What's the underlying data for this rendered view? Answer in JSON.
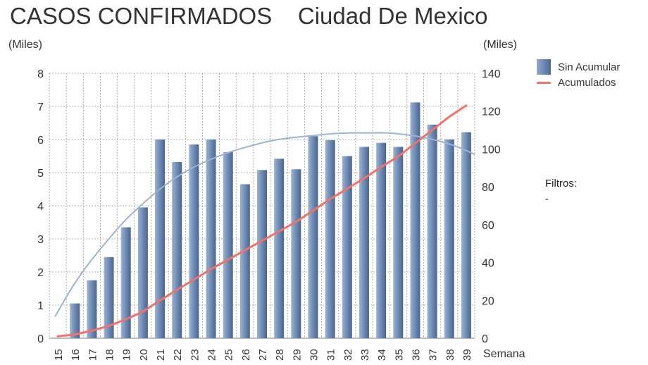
{
  "title": "CASOS CONFIRMADOS    Ciudad De Mexico",
  "filters": {
    "label": "Filtros:",
    "value": "-"
  },
  "chart_data": {
    "type": "bar",
    "title": "CASOS CONFIRMADOS    Ciudad De Mexico",
    "xlabel": "Semana",
    "ylabel_left": "(Miles)",
    "ylabel_right": "(Miles)",
    "categories": [
      "15",
      "16",
      "17",
      "18",
      "19",
      "20",
      "21",
      "22",
      "23",
      "24",
      "25",
      "26",
      "27",
      "28",
      "29",
      "30",
      "31",
      "32",
      "33",
      "34",
      "35",
      "36",
      "37",
      "38",
      "39"
    ],
    "ylim_left": [
      0,
      8
    ],
    "yticks_left": [
      0,
      1,
      2,
      3,
      4,
      5,
      6,
      7,
      8
    ],
    "ylim_right": [
      0,
      140
    ],
    "yticks_right": [
      0,
      20,
      40,
      60,
      80,
      100,
      120,
      140
    ],
    "grid": true,
    "legend_position": "top-right",
    "series": [
      {
        "name": "Sin Acumular",
        "type": "bar",
        "axis": "left",
        "color": "#5a7aa6",
        "values": [
          0,
          1.05,
          1.75,
          2.45,
          3.35,
          3.95,
          6.0,
          5.32,
          5.85,
          6.0,
          5.62,
          4.65,
          5.08,
          5.42,
          5.1,
          6.1,
          5.98,
          5.5,
          5.78,
          5.9,
          5.78,
          7.12,
          6.45,
          6.0,
          6.22
        ]
      },
      {
        "name": "Acumulados",
        "type": "line",
        "axis": "right",
        "color": "#f07268",
        "values": [
          1,
          2,
          4,
          6.5,
          10,
          14,
          20,
          25.5,
          31,
          36.5,
          41.5,
          46.5,
          51.5,
          56.5,
          61.5,
          67.5,
          73.5,
          79,
          84.5,
          90.5,
          96,
          103,
          110,
          117,
          123
        ]
      },
      {
        "type": "line",
        "axis": "left",
        "role": "trend",
        "color": "#9db3d2",
        "values": [
          0.65,
          1.55,
          2.3,
          2.95,
          3.55,
          4.05,
          4.5,
          4.88,
          5.18,
          5.42,
          5.62,
          5.78,
          5.92,
          6.02,
          6.08,
          6.13,
          6.18,
          6.2,
          6.2,
          6.2,
          6.15,
          6.07,
          5.95,
          5.78,
          5.55
        ]
      }
    ]
  }
}
